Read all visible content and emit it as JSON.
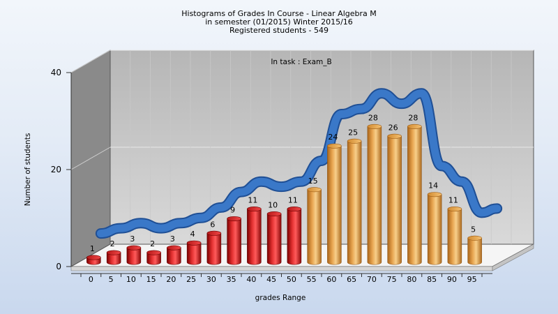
{
  "chart_data": {
    "type": "bar",
    "title_lines": [
      "Histograms of Grades  In Course - Linear Algebra M",
      "in semester  (01/2015) Winter 2015/16",
      "Registered students - 549"
    ],
    "annotation": "In task : Exam_B",
    "xlabel": "grades Range",
    "ylabel": "Number of students",
    "ylim": [
      0,
      40
    ],
    "yticks": [
      0,
      20,
      40
    ],
    "categories": [
      "0",
      "5",
      "10",
      "15",
      "20",
      "25",
      "30",
      "35",
      "40",
      "45",
      "50",
      "55",
      "60",
      "65",
      "70",
      "75",
      "80",
      "85",
      "90",
      "95"
    ],
    "values": [
      1,
      2,
      3,
      2,
      3,
      4,
      6,
      9,
      11,
      10,
      11,
      15,
      24,
      25,
      28,
      26,
      28,
      14,
      11,
      5
    ],
    "bar_colors": [
      "#d42020",
      "#d42020",
      "#d42020",
      "#d42020",
      "#d42020",
      "#d42020",
      "#d42020",
      "#d42020",
      "#d42020",
      "#d42020",
      "#d42020",
      "#e6a44a",
      "#e6a44a",
      "#e6a44a",
      "#e6a44a",
      "#e6a44a",
      "#e6a44a",
      "#e6a44a",
      "#e6a44a",
      "#e6a44a"
    ],
    "curve_color": "#3a78c8",
    "grid": true,
    "legend": "none"
  }
}
